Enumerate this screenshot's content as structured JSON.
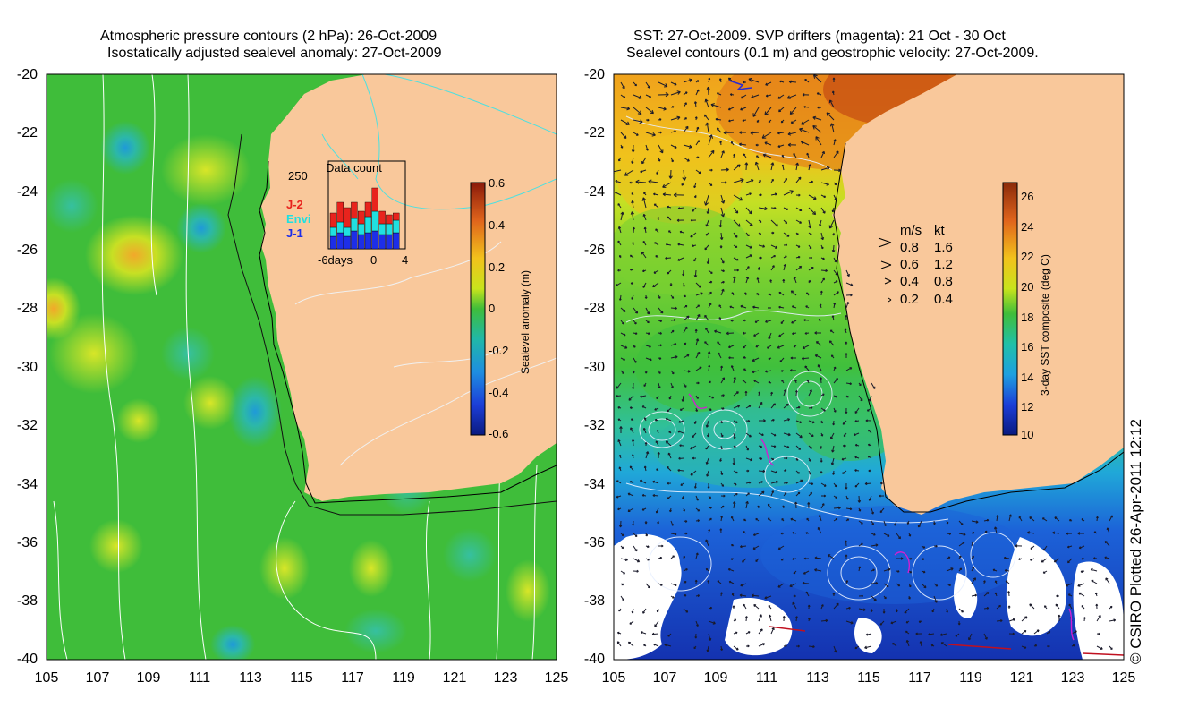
{
  "left_panel": {
    "title_line1": "Atmospheric pressure contours (2 hPa): 26-Oct-2009",
    "title_line2": "Isostatically adjusted sealevel anomaly: 27-Oct-2009",
    "y_ticks": [
      "-20",
      "-22",
      "-24",
      "-26",
      "-28",
      "-30",
      "-32",
      "-34",
      "-36",
      "-38",
      "-40"
    ],
    "x_ticks": [
      "105",
      "107",
      "109",
      "111",
      "113",
      "115",
      "117",
      "119",
      "121",
      "123",
      "125"
    ],
    "inset": {
      "title": "Data count",
      "y_label": "250",
      "x_labels": [
        "-6days",
        "0",
        "4"
      ],
      "legend": [
        {
          "label": "J-2",
          "color": "#e8231d"
        },
        {
          "label": "Envi",
          "color": "#20e0e0"
        },
        {
          "label": "J-1",
          "color": "#1d2ee8"
        }
      ]
    },
    "colorbar": {
      "label": "Sealevel anomaly (m)",
      "ticks": [
        "0.6",
        "0.4",
        "0.2",
        "0",
        "-0.2",
        "-0.4",
        "-0.6"
      ]
    }
  },
  "right_panel": {
    "title_line1": "SST: 27-Oct-2009. SVP drifters (magenta): 21 Oct - 30 Oct",
    "title_line2": "Sealevel contours (0.1 m) and geostrophic velocity: 27-Oct-2009.",
    "y_ticks": [
      "-20",
      "-22",
      "-24",
      "-26",
      "-28",
      "-30",
      "-32",
      "-34",
      "-36",
      "-38",
      "-40"
    ],
    "x_ticks": [
      "105",
      "107",
      "109",
      "111",
      "113",
      "115",
      "117",
      "119",
      "121",
      "123",
      "125"
    ],
    "velocity_legend": {
      "header_ms": "m/s",
      "header_kt": "kt",
      "rows": [
        {
          "ms": "0.8",
          "kt": "1.6"
        },
        {
          "ms": "0.6",
          "kt": "1.2"
        },
        {
          "ms": "0.4",
          "kt": "0.8"
        },
        {
          "ms": "0.2",
          "kt": "0.4"
        }
      ]
    },
    "colorbar": {
      "label": "3-day SST composite (deg C)",
      "ticks": [
        "26",
        "24",
        "22",
        "20",
        "18",
        "16",
        "14",
        "12",
        "10"
      ]
    }
  },
  "credit": "© CSIRO Plotted 26-Apr-2011 12:12",
  "colors": {
    "land": "#f9c89b",
    "ocean_green": "#3fbd3a",
    "sst_orange": "#f29a1c",
    "sst_blue": "#1c5fd8"
  }
}
